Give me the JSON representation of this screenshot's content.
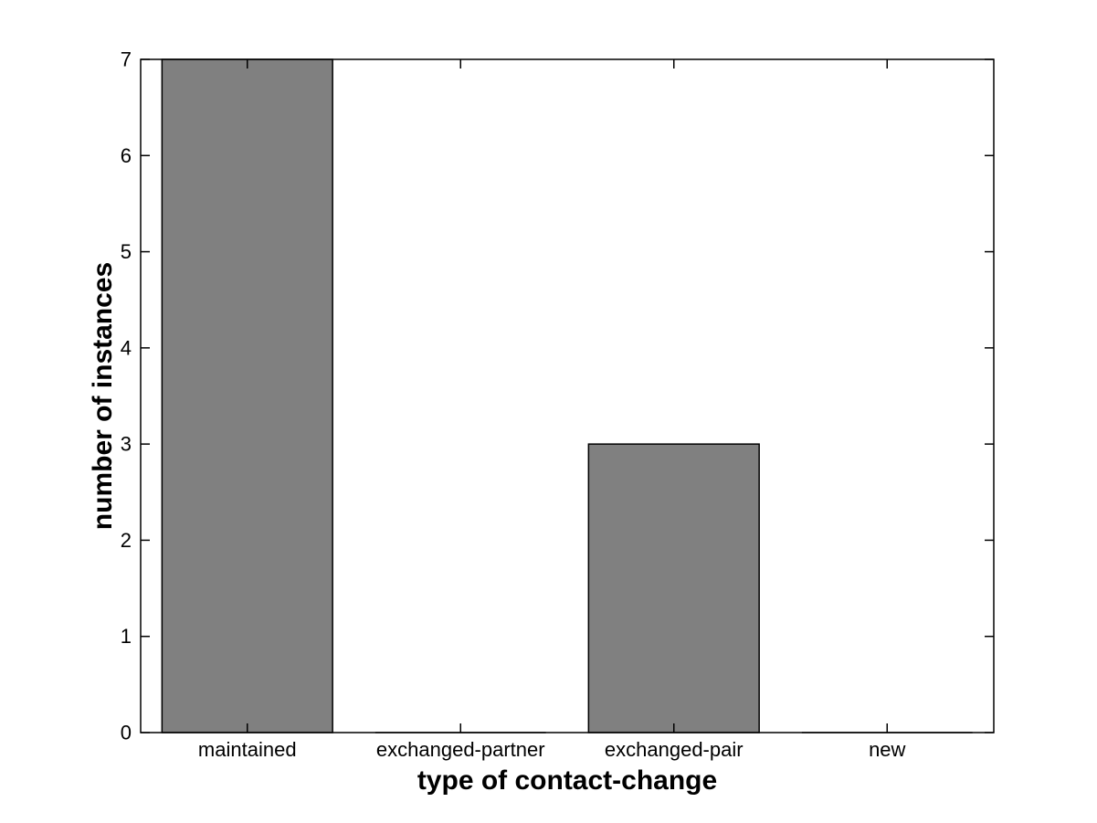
{
  "chart_data": {
    "type": "bar",
    "title": "",
    "categories": [
      "maintained",
      "exchanged-partner",
      "exchanged-pair",
      "new"
    ],
    "values": [
      7,
      0,
      3,
      0
    ],
    "xlabel": "type of contact-change",
    "ylabel": "number of instances",
    "ylim": [
      0,
      7
    ],
    "yticks": [
      0,
      1,
      2,
      3,
      4,
      5,
      6,
      7
    ],
    "bar_width_fraction": 0.8,
    "grid": false,
    "legend": null,
    "box": true,
    "tick_direction": "in",
    "colors": {
      "bar_fill": "#808080",
      "bar_edge": "#000000",
      "axis": "#000000",
      "text": "#000000",
      "background": "#ffffff"
    }
  }
}
